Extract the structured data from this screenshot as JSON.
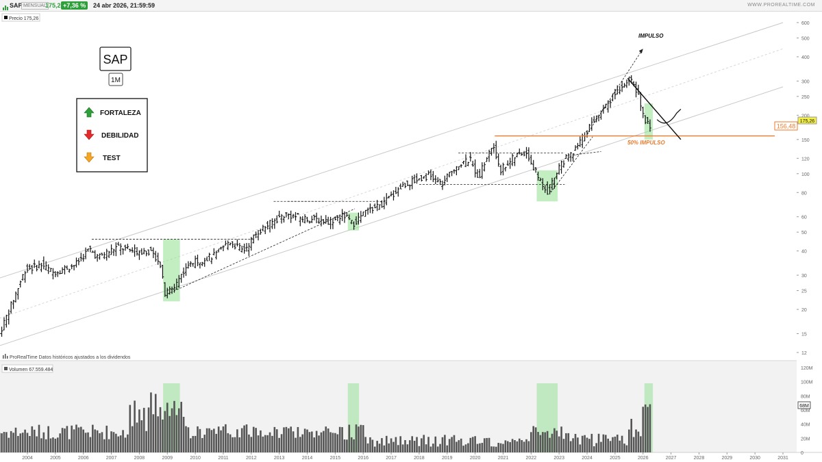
{
  "header": {
    "symbol": "SAP",
    "period": "MENSUAL",
    "last_price": "175,26",
    "change": "+7,36 %",
    "datetime": "24 abr 2026, 21:59:59",
    "site": "WWW.PROREALTIME.COM"
  },
  "price_panel": {
    "label": "Precio",
    "value": "175,26",
    "price_tag": "175,26",
    "level_tag": "156,48",
    "footer_brand": "ProRealTime",
    "footer_note": "Datos históricos ajustados a los dividendos"
  },
  "volume_panel": {
    "label": "Volumen",
    "value": "67.559.484",
    "tag": "68M"
  },
  "annotations": {
    "ticker_box": "SAP",
    "timeframe_box": "1M",
    "legend": [
      {
        "label": "FORTALEZA",
        "color": "#2e9f3a",
        "icon": "arrow-up-icon"
      },
      {
        "label": "DEBILIDAD",
        "color": "#e32b2b",
        "icon": "arrow-down-icon"
      },
      {
        "label": "TEST",
        "color": "#f5a623",
        "icon": "arrow-down-icon"
      }
    ],
    "impulso": "IMPULSO",
    "impulso_50": "50% IMPULSO"
  },
  "colors": {
    "bars": "#111111",
    "highlight": "#8fe08f",
    "level_line": "#f07a2a",
    "price_tag_bg": "#f4f04a",
    "volume_bars": "#555555"
  },
  "chart_data": {
    "type": "candlestick-ohlc-bars",
    "scale": "log",
    "y_ticks": [
      12,
      15,
      20,
      25,
      30,
      40,
      50,
      60,
      80,
      100,
      120,
      150,
      200,
      250,
      300,
      400,
      500,
      600
    ],
    "x_ticks": [
      "2004",
      "2005",
      "2006",
      "2007",
      "2008",
      "2009",
      "2010",
      "2011",
      "2012",
      "2013",
      "2014",
      "2015",
      "2016",
      "2017",
      "2018",
      "2019",
      "2020",
      "2021",
      "2022",
      "2023",
      "2024",
      "2025",
      "2026",
      "2027",
      "2028",
      "2029",
      "2030",
      "2031"
    ],
    "volume_ticks": [
      "0",
      "20M",
      "40M",
      "60M",
      "80M",
      "100M",
      "120M"
    ],
    "price_keypoints": [
      {
        "x": 2003.0,
        "y": 14
      },
      {
        "x": 2003.5,
        "y": 21
      },
      {
        "x": 2004.0,
        "y": 32
      },
      {
        "x": 2004.6,
        "y": 34
      },
      {
        "x": 2005.0,
        "y": 31
      },
      {
        "x": 2005.8,
        "y": 34
      },
      {
        "x": 2006.3,
        "y": 41
      },
      {
        "x": 2006.6,
        "y": 37
      },
      {
        "x": 2007.3,
        "y": 42
      },
      {
        "x": 2007.8,
        "y": 40
      },
      {
        "x": 2008.4,
        "y": 40
      },
      {
        "x": 2008.8,
        "y": 36
      },
      {
        "x": 2009.0,
        "y": 24
      },
      {
        "x": 2009.3,
        "y": 26
      },
      {
        "x": 2009.8,
        "y": 34
      },
      {
        "x": 2010.3,
        "y": 36
      },
      {
        "x": 2010.8,
        "y": 38
      },
      {
        "x": 2011.3,
        "y": 45
      },
      {
        "x": 2011.8,
        "y": 40
      },
      {
        "x": 2012.3,
        "y": 50
      },
      {
        "x": 2012.8,
        "y": 56
      },
      {
        "x": 2013.3,
        "y": 62
      },
      {
        "x": 2013.9,
        "y": 59
      },
      {
        "x": 2014.4,
        "y": 58
      },
      {
        "x": 2014.9,
        "y": 57
      },
      {
        "x": 2015.4,
        "y": 61
      },
      {
        "x": 2015.7,
        "y": 55
      },
      {
        "x": 2016.2,
        "y": 64
      },
      {
        "x": 2016.8,
        "y": 70
      },
      {
        "x": 2017.4,
        "y": 85
      },
      {
        "x": 2017.9,
        "y": 92
      },
      {
        "x": 2018.4,
        "y": 98
      },
      {
        "x": 2018.9,
        "y": 88
      },
      {
        "x": 2019.4,
        "y": 110
      },
      {
        "x": 2019.9,
        "y": 118
      },
      {
        "x": 2020.2,
        "y": 96
      },
      {
        "x": 2020.7,
        "y": 140
      },
      {
        "x": 2021.0,
        "y": 105
      },
      {
        "x": 2021.5,
        "y": 122
      },
      {
        "x": 2021.9,
        "y": 130
      },
      {
        "x": 2022.3,
        "y": 98
      },
      {
        "x": 2022.7,
        "y": 80
      },
      {
        "x": 2023.1,
        "y": 112
      },
      {
        "x": 2023.6,
        "y": 128
      },
      {
        "x": 2024.0,
        "y": 160
      },
      {
        "x": 2024.5,
        "y": 205
      },
      {
        "x": 2024.9,
        "y": 240
      },
      {
        "x": 2025.4,
        "y": 295
      },
      {
        "x": 2025.6,
        "y": 305
      },
      {
        "x": 2025.9,
        "y": 260
      },
      {
        "x": 2026.1,
        "y": 195
      },
      {
        "x": 2026.3,
        "y": 175
      }
    ],
    "highlight_zones": [
      {
        "x0": 2008.85,
        "x1": 2009.45,
        "y0": 22,
        "y1": 46
      },
      {
        "x0": 2015.45,
        "x1": 2015.85,
        "y0": 51,
        "y1": 63
      },
      {
        "x0": 2022.2,
        "x1": 2022.95,
        "y0": 72,
        "y1": 104
      },
      {
        "x0": 2026.05,
        "x1": 2026.35,
        "y0": 150,
        "y1": 230
      }
    ],
    "horizontal_level": 156.48,
    "volume_highlights": [
      {
        "x0": 2008.85,
        "x1": 2009.45
      },
      {
        "x0": 2015.45,
        "x1": 2015.85
      },
      {
        "x0": 2022.2,
        "x1": 2022.95
      },
      {
        "x0": 2026.05,
        "x1": 2026.35
      }
    ]
  }
}
